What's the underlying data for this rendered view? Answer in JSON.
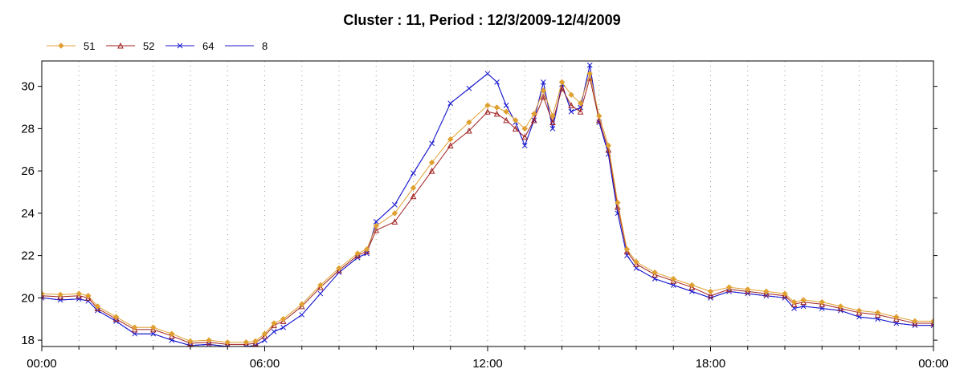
{
  "chart_data": {
    "type": "line",
    "title": "Cluster : 11, Period : 12/3/2009-12/4/2009",
    "xlabel": "",
    "ylabel": "",
    "x_unit": "hours",
    "xlim": [
      0,
      24
    ],
    "ylim": [
      17.7,
      31.2
    ],
    "x_ticks": [
      {
        "value": 0,
        "label": "00:00"
      },
      {
        "value": 6,
        "label": "06:00"
      },
      {
        "value": 12,
        "label": "12:00"
      },
      {
        "value": 18,
        "label": "18:00"
      },
      {
        "value": 24,
        "label": "00:00"
      }
    ],
    "y_ticks": [
      18,
      20,
      22,
      24,
      26,
      28,
      30
    ],
    "grid": "dotted vertical, hourly",
    "legend_position": "top-left",
    "x": [
      0,
      0.5,
      1,
      1.25,
      1.5,
      2,
      2.5,
      3,
      3.5,
      4,
      4.5,
      5,
      5.5,
      5.75,
      6,
      6.25,
      6.5,
      7,
      7.5,
      8,
      8.5,
      8.75,
      9,
      9.5,
      10,
      10.5,
      11,
      11.5,
      12,
      12.25,
      12.5,
      12.75,
      13,
      13.25,
      13.5,
      13.75,
      14,
      14.25,
      14.5,
      14.75,
      15,
      15.25,
      15.5,
      15.75,
      16,
      16.5,
      17,
      17.5,
      18,
      18.5,
      19,
      19.5,
      20,
      20.25,
      20.5,
      21,
      21.5,
      22,
      22.5,
      23,
      23.5,
      24
    ],
    "series": [
      {
        "name": "51",
        "color": "#e0a030",
        "marker": "diamond",
        "values": [
          20.2,
          20.15,
          20.2,
          20.1,
          19.6,
          19.1,
          18.6,
          18.6,
          18.3,
          17.95,
          18.0,
          17.9,
          17.9,
          17.95,
          18.3,
          18.8,
          19.0,
          19.7,
          20.6,
          21.4,
          22.1,
          22.3,
          23.4,
          24.0,
          25.2,
          26.4,
          27.5,
          28.3,
          29.1,
          29.0,
          28.8,
          28.4,
          28.0,
          28.7,
          29.8,
          28.6,
          30.2,
          29.6,
          29.2,
          30.6,
          28.6,
          27.2,
          24.5,
          22.3,
          21.7,
          21.2,
          20.9,
          20.6,
          20.3,
          20.5,
          20.4,
          20.3,
          20.2,
          19.8,
          19.9,
          19.8,
          19.6,
          19.4,
          19.3,
          19.1,
          18.9,
          18.9
        ]
      },
      {
        "name": "52",
        "color": "#a02020",
        "marker": "triangle",
        "values": [
          20.1,
          20.05,
          20.1,
          20.0,
          19.5,
          19.0,
          18.5,
          18.5,
          18.2,
          17.85,
          17.9,
          17.8,
          17.8,
          17.85,
          18.2,
          18.7,
          18.9,
          19.6,
          20.5,
          21.3,
          22.0,
          22.2,
          23.2,
          23.6,
          24.8,
          26.0,
          27.2,
          27.9,
          28.8,
          28.7,
          28.4,
          28.0,
          27.6,
          28.4,
          29.5,
          28.3,
          29.9,
          29.1,
          28.8,
          30.4,
          28.4,
          27.0,
          24.3,
          22.2,
          21.6,
          21.1,
          20.8,
          20.5,
          20.1,
          20.4,
          20.3,
          20.2,
          20.1,
          19.7,
          19.8,
          19.7,
          19.5,
          19.3,
          19.2,
          19.0,
          18.8,
          18.8
        ]
      },
      {
        "name": "64",
        "color": "#1a1ad0",
        "marker": "cross",
        "values": [
          20.0,
          19.9,
          19.95,
          19.85,
          19.4,
          18.9,
          18.3,
          18.3,
          18.0,
          17.75,
          17.8,
          17.7,
          17.7,
          17.75,
          18.0,
          18.4,
          18.6,
          19.2,
          20.2,
          21.2,
          21.9,
          22.1,
          23.6,
          24.4,
          25.9,
          27.3,
          29.2,
          29.9,
          30.6,
          30.2,
          29.1,
          28.3,
          27.2,
          28.4,
          30.2,
          28.0,
          30.1,
          28.8,
          29.0,
          31.0,
          28.3,
          26.8,
          24.0,
          22.0,
          21.4,
          20.9,
          20.6,
          20.3,
          20.0,
          20.3,
          20.2,
          20.1,
          20.0,
          19.5,
          19.6,
          19.5,
          19.4,
          19.1,
          19.0,
          18.8,
          18.7,
          18.7
        ]
      },
      {
        "name": "8",
        "color": "#1a1ad0",
        "marker": "none",
        "values": [
          20.0,
          19.9,
          19.95,
          19.85,
          19.4,
          18.9,
          18.3,
          18.3,
          18.0,
          17.75,
          17.8,
          17.7,
          17.7,
          17.75,
          18.0,
          18.4,
          18.6,
          19.2,
          20.2,
          21.2,
          21.9,
          22.1,
          23.6,
          24.4,
          25.9,
          27.3,
          29.2,
          29.9,
          30.6,
          30.2,
          29.1,
          28.3,
          27.2,
          28.4,
          30.2,
          28.0,
          30.1,
          28.8,
          29.0,
          31.0,
          28.3,
          26.8,
          24.0,
          22.0,
          21.4,
          20.9,
          20.6,
          20.3,
          20.0,
          20.3,
          20.2,
          20.1,
          20.0,
          19.5,
          19.6,
          19.5,
          19.4,
          19.1,
          19.0,
          18.8,
          18.7,
          18.7
        ]
      }
    ]
  }
}
